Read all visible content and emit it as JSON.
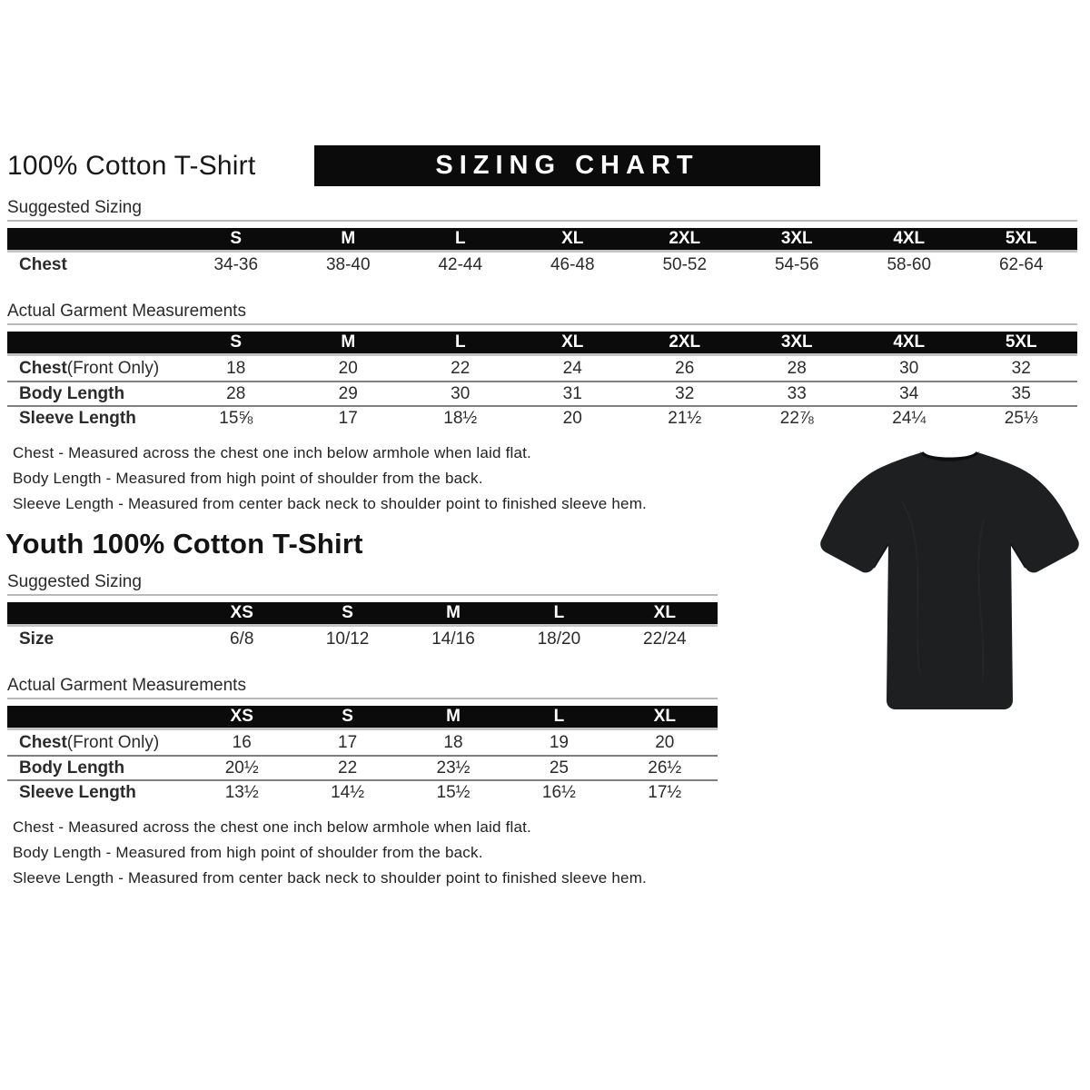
{
  "page": {
    "title": "100% Cotton T-Shirt",
    "banner": "SIZING CHART"
  },
  "adult": {
    "suggested": {
      "heading": "Suggested Sizing",
      "columns": [
        "S",
        "M",
        "L",
        "XL",
        "2XL",
        "3XL",
        "4XL",
        "5XL"
      ],
      "rows": [
        {
          "label": "Chest",
          "suffix": "",
          "values": [
            "34-36",
            "38-40",
            "42-44",
            "46-48",
            "50-52",
            "54-56",
            "58-60",
            "62-64"
          ]
        }
      ]
    },
    "actual": {
      "heading": "Actual Garment Measurements",
      "columns": [
        "S",
        "M",
        "L",
        "XL",
        "2XL",
        "3XL",
        "4XL",
        "5XL"
      ],
      "rows": [
        {
          "label": "Chest",
          "suffix": " (Front Only)",
          "values": [
            "18",
            "20",
            "22",
            "24",
            "26",
            "28",
            "30",
            "32"
          ]
        },
        {
          "label": "Body Length",
          "suffix": "",
          "values": [
            "28",
            "29",
            "30",
            "31",
            "32",
            "33",
            "34",
            "35"
          ]
        },
        {
          "label": "Sleeve Length",
          "suffix": "",
          "values": [
            "15⅝",
            "17",
            "18½",
            "20",
            "21½",
            "22⅞",
            "24¼",
            "25⅓"
          ]
        }
      ]
    },
    "notes": [
      "Chest - Measured across the chest one inch below armhole when laid flat.",
      "Body Length - Measured from high point of shoulder from the back.",
      "Sleeve Length - Measured from center back neck to shoulder point to finished sleeve hem."
    ]
  },
  "youth": {
    "title": "Youth 100% Cotton T-Shirt",
    "suggested": {
      "heading": "Suggested Sizing",
      "columns": [
        "XS",
        "S",
        "M",
        "L",
        "XL"
      ],
      "rows": [
        {
          "label": "Size",
          "suffix": "",
          "values": [
            "6/8",
            "10/12",
            "14/16",
            "18/20",
            "22/24"
          ]
        }
      ]
    },
    "actual": {
      "heading": "Actual Garment Measurements",
      "columns": [
        "XS",
        "S",
        "M",
        "L",
        "XL"
      ],
      "rows": [
        {
          "label": "Chest",
          "suffix": " (Front Only)",
          "values": [
            "16",
            "17",
            "18",
            "19",
            "20"
          ]
        },
        {
          "label": "Body Length",
          "suffix": "",
          "values": [
            "20½",
            "22",
            "23½",
            "25",
            "26½"
          ]
        },
        {
          "label": "Sleeve Length",
          "suffix": "",
          "values": [
            "13½",
            "14½",
            "15½",
            "16½",
            "17½"
          ]
        }
      ]
    },
    "notes": [
      "Chest - Measured across the chest one inch below armhole when laid flat.",
      "Body Length - Measured from high point of shoulder from the back.",
      "Sleeve Length - Measured from center back neck to shoulder point to finished sleeve hem."
    ]
  },
  "tshirt_image": {
    "description": "blank black short-sleeve crew-neck t-shirt",
    "shirt_color": "#1e1f21",
    "collar_color": "#121315"
  },
  "colors": {
    "bar_bg": "#0b0b0b",
    "bar_text": "#ffffff",
    "separator": "#7f7f7f",
    "underline": "#b9b9b9"
  }
}
